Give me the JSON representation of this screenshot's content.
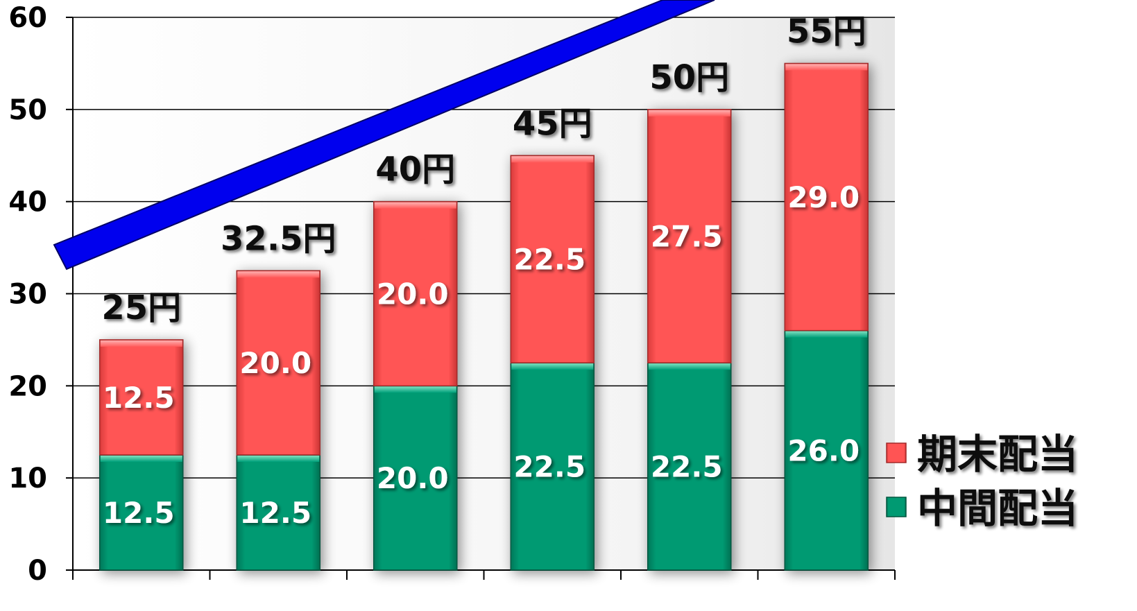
{
  "chart_data": {
    "type": "bar",
    "stacked": true,
    "categories": [
      "",
      "",
      "",
      "",
      "",
      ""
    ],
    "series": [
      {
        "name": "中間配当",
        "values": [
          12.5,
          12.5,
          20.0,
          22.5,
          22.5,
          26.0
        ],
        "value_labels": [
          "12.5",
          "12.5",
          "20.0",
          "22.5",
          "22.5",
          "26.0"
        ],
        "color": "#009a70"
      },
      {
        "name": "期末配当",
        "values": [
          12.5,
          20.0,
          20.0,
          22.5,
          27.5,
          29.0
        ],
        "value_labels": [
          "12.5",
          "20.0",
          "20.0",
          "22.5",
          "27.5",
          "29.0"
        ],
        "color": "#ff5252"
      }
    ],
    "totals": [
      25,
      32.5,
      40,
      45,
      50,
      55
    ],
    "total_labels": [
      "25円",
      "32.5円",
      "40円",
      "45円",
      "50円",
      "55円"
    ],
    "yticks": [
      "0",
      "10",
      "20",
      "30",
      "40",
      "50",
      "60"
    ],
    "ylim": [
      0,
      60
    ],
    "grid": true,
    "legend": "right",
    "trend_arrow_color": "#0000ee",
    "title": "",
    "xlabel": "",
    "ylabel": ""
  }
}
